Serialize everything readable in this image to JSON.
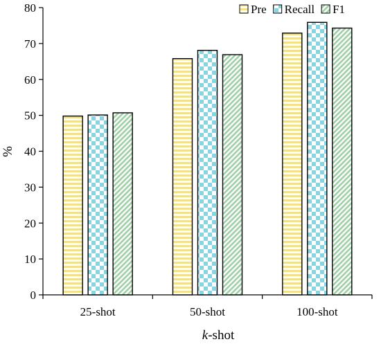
{
  "chart_data": {
    "type": "bar",
    "categories": [
      "25-shot",
      "50-shot",
      "100-shot"
    ],
    "series": [
      {
        "name": "Pre",
        "values": [
          49.8,
          65.8,
          72.9
        ],
        "color": "#f2e08a",
        "pattern": "horizontal-stripes"
      },
      {
        "name": "Recall",
        "values": [
          50.1,
          68.1,
          75.9
        ],
        "color": "#88d4e2",
        "pattern": "checkerboard"
      },
      {
        "name": "F1",
        "values": [
          50.7,
          66.9,
          74.3
        ],
        "color": "#9fcfa6",
        "pattern": "diagonal-stripes"
      }
    ],
    "title": "",
    "xlabel_prefix": "k",
    "xlabel_suffix": "-shot",
    "ylabel": "%",
    "ylim": [
      0,
      80
    ],
    "yticks": [
      "0",
      "10",
      "20",
      "30",
      "40",
      "50",
      "60",
      "70",
      "80"
    ],
    "grid": false,
    "legend": "top-right"
  }
}
